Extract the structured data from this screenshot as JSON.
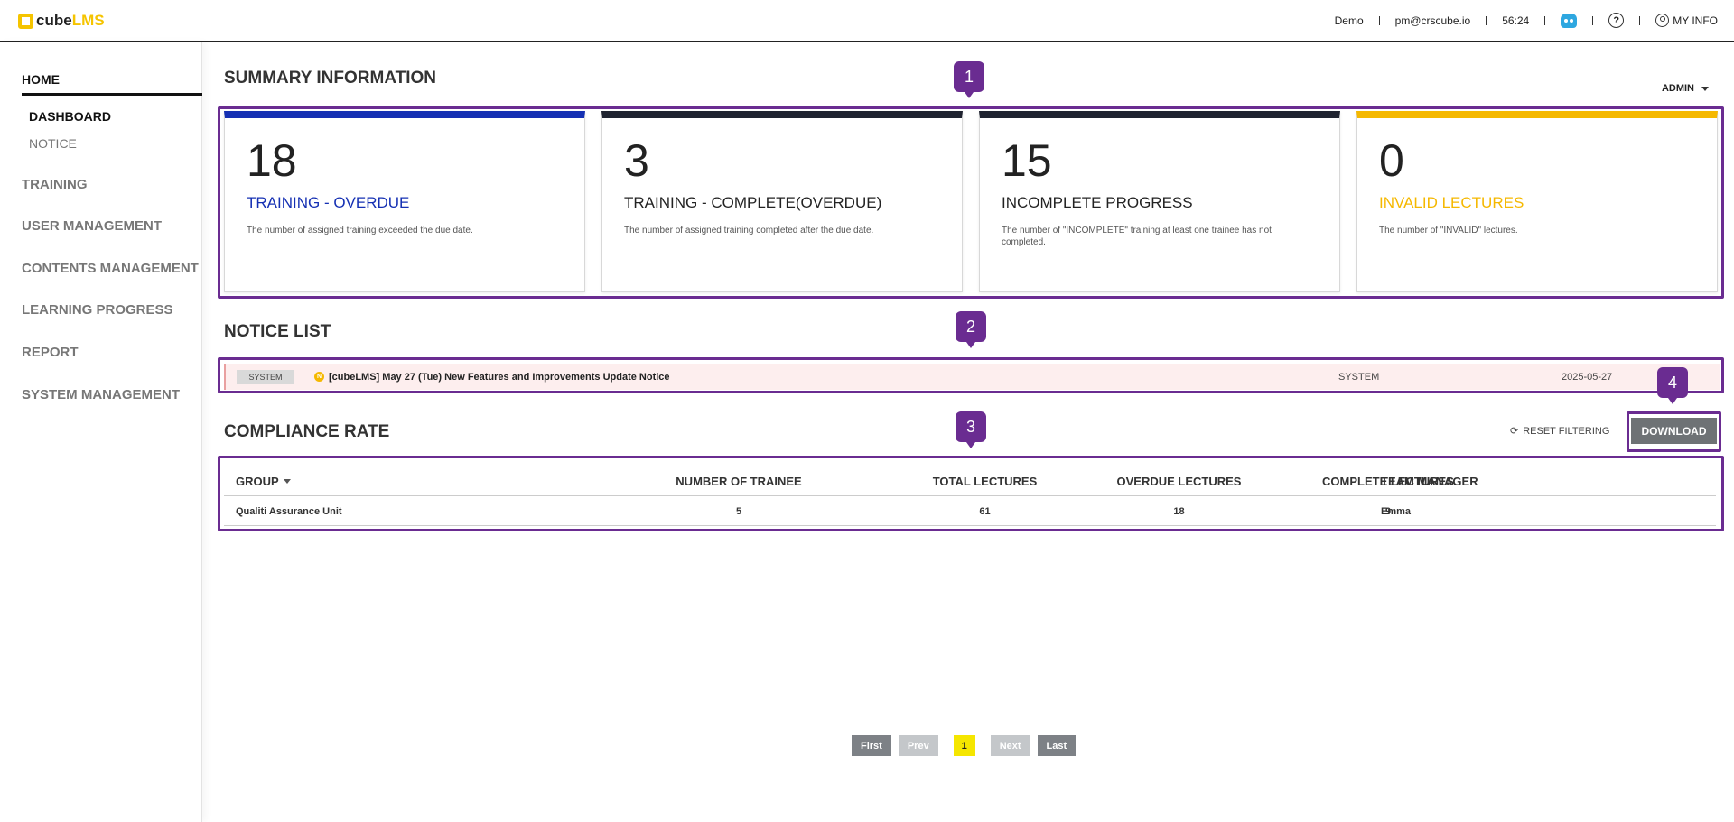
{
  "app": {
    "logo_cube": "cube",
    "logo_lms": "LMS",
    "brand_color": "#f5c400"
  },
  "header": {
    "company": "Demo",
    "email": "pm@crscube.io",
    "timer": "56:24",
    "help_label": "?",
    "myinfo_label": "MY INFO"
  },
  "sidebar": {
    "home": "HOME",
    "sub_items": [
      {
        "label": "DASHBOARD"
      },
      {
        "label": "NOTICE"
      }
    ],
    "items": [
      {
        "label": "TRAINING"
      },
      {
        "label": "USER MANAGEMENT"
      },
      {
        "label": "CONTENTS MANAGEMENT"
      },
      {
        "label": "LEARNING PROGRESS"
      },
      {
        "label": "REPORT"
      },
      {
        "label": "SYSTEM MANAGEMENT"
      }
    ]
  },
  "summary": {
    "title": "SUMMARY INFORMATION",
    "role": "ADMIN",
    "cards": [
      {
        "value": "18",
        "label": "TRAINING - OVERDUE",
        "desc": "The number of assigned training exceeded the due date.",
        "color": "#1530b3"
      },
      {
        "value": "3",
        "label": "TRAINING - COMPLETE(OVERDUE)",
        "desc": "The number of assigned training completed after the due date.",
        "color": "#1f2330"
      },
      {
        "value": "15",
        "label": "INCOMPLETE PROGRESS",
        "desc": "The number of \"INCOMPLETE\" training at least one trainee has not completed.",
        "color": "#1f2330"
      },
      {
        "value": "0",
        "label": "INVALID LECTURES",
        "desc": "The number of \"INVALID\" lectures.",
        "color": "#f5b800"
      }
    ]
  },
  "notice": {
    "title": "NOTICE LIST",
    "rows": [
      {
        "tag": "SYSTEM",
        "new_badge": "N",
        "subject": "[cubeLMS] May 27 (Tue) New Features and Improvements Update Notice",
        "author": "SYSTEM",
        "date": "2025-05-27"
      }
    ]
  },
  "compliance": {
    "title": "COMPLIANCE RATE",
    "reset_label": "RESET FILTERING",
    "download_label": "DOWNLOAD",
    "columns": [
      "GROUP",
      "NUMBER OF TRAINEE",
      "TOTAL LECTURES",
      "OVERDUE LECTURES",
      "COMPLETE LECTURES",
      "TEAM MANAGER"
    ],
    "rows": [
      {
        "group": "Qualiti Assurance Unit",
        "trainees": "5",
        "total": "61",
        "overdue": "18",
        "complete": "9",
        "manager": "Emma"
      }
    ]
  },
  "annotations": [
    "1",
    "2",
    "3",
    "4"
  ],
  "pagination": {
    "first": "First",
    "prev": "Prev",
    "current": "1",
    "next": "Next",
    "last": "Last"
  },
  "colors": {
    "highlight": "#6a2c91",
    "notice_bg": "#fdeeee",
    "current_page": "#f5e600"
  }
}
